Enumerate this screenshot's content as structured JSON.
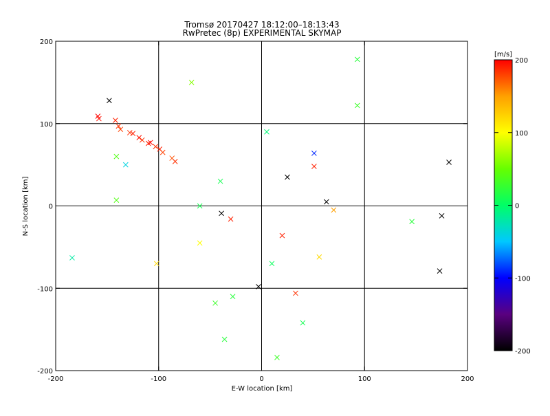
{
  "chart_data": {
    "type": "scatter",
    "title": "Tromsø 20170427 18:12:00–18:13:43",
    "subtitle": "RwPretec (8p) EXPERIMENTAL SKYMAP",
    "xlabel": "E-W location [km]",
    "ylabel": "N-S location [km]",
    "xlim": [
      -200,
      200
    ],
    "ylim": [
      -200,
      200
    ],
    "x_ticks": [
      "-200",
      "-100",
      "0",
      "100",
      "200"
    ],
    "y_ticks": [
      "-200",
      "-100",
      "0",
      "100",
      "200"
    ],
    "gridlines_x": [
      -100,
      0,
      100
    ],
    "gridlines_y": [
      -100,
      0,
      100
    ],
    "grid": true,
    "colorbar": {
      "label": "[m/s]",
      "range": [
        -200,
        200
      ],
      "ticks": [
        "-200",
        "-100",
        "0",
        "100",
        "200"
      ],
      "colormap": [
        "#000000",
        "#5a0080",
        "#0000ff",
        "#00c8ff",
        "#00ff66",
        "#66ff00",
        "#ffff00",
        "#ffa000",
        "#ff0000"
      ]
    },
    "marker_sizes": {
      "large": 7,
      "small": 2.5
    },
    "points": [
      {
        "x": -159,
        "y": 109,
        "v": 200,
        "m": "x"
      },
      {
        "x": -158,
        "y": 106,
        "v": 195,
        "m": "x"
      },
      {
        "x": -142,
        "y": 104,
        "v": 190,
        "m": "x"
      },
      {
        "x": -139,
        "y": 97,
        "v": 185,
        "m": "x"
      },
      {
        "x": -137,
        "y": 93,
        "v": 180,
        "m": "x"
      },
      {
        "x": -128,
        "y": 89,
        "v": 185,
        "m": "x"
      },
      {
        "x": -125,
        "y": 88,
        "v": 190,
        "m": "x"
      },
      {
        "x": -119,
        "y": 83,
        "v": 195,
        "m": "x"
      },
      {
        "x": -116,
        "y": 80,
        "v": 185,
        "m": "x"
      },
      {
        "x": -110,
        "y": 76,
        "v": 190,
        "m": "x"
      },
      {
        "x": -108,
        "y": 77,
        "v": 200,
        "m": "x"
      },
      {
        "x": -103,
        "y": 72,
        "v": 185,
        "m": "x"
      },
      {
        "x": -99,
        "y": 69,
        "v": 190,
        "m": "x"
      },
      {
        "x": -96,
        "y": 65,
        "v": 180,
        "m": "x"
      },
      {
        "x": -87,
        "y": 58,
        "v": 175,
        "m": "x"
      },
      {
        "x": -84,
        "y": 54,
        "v": 185,
        "m": "x"
      },
      {
        "x": -148,
        "y": 128,
        "v": -200,
        "m": "x"
      },
      {
        "x": -132,
        "y": 50,
        "v": -40,
        "m": "x"
      },
      {
        "x": -141,
        "y": 60,
        "v": 40,
        "m": "x"
      },
      {
        "x": -141,
        "y": 7,
        "v": 40,
        "m": "x"
      },
      {
        "x": -68,
        "y": 150,
        "v": 60,
        "m": "x"
      },
      {
        "x": 93,
        "y": 178,
        "v": 20,
        "m": "x"
      },
      {
        "x": 93,
        "y": 122,
        "v": 30,
        "m": "x"
      },
      {
        "x": 182,
        "y": 53,
        "v": -200,
        "m": "x"
      },
      {
        "x": 175,
        "y": -12,
        "v": -200,
        "m": "x"
      },
      {
        "x": 173,
        "y": -79,
        "v": -200,
        "m": "x"
      },
      {
        "x": 146,
        "y": -19,
        "v": 20,
        "m": "x"
      },
      {
        "x": 51,
        "y": 64,
        "v": -90,
        "m": "x"
      },
      {
        "x": 51,
        "y": 48,
        "v": 190,
        "m": "x"
      },
      {
        "x": 25,
        "y": 35,
        "v": -200,
        "m": "x"
      },
      {
        "x": 63,
        "y": 5,
        "v": -200,
        "m": "x"
      },
      {
        "x": 20,
        "y": -36,
        "v": 190,
        "m": "x"
      },
      {
        "x": 33,
        "y": -106,
        "v": 185,
        "m": "x"
      },
      {
        "x": -3,
        "y": -98,
        "v": -200,
        "m": "x"
      },
      {
        "x": -39,
        "y": -9,
        "v": -200,
        "m": "x"
      },
      {
        "x": -30,
        "y": -16,
        "v": 190,
        "m": "x"
      },
      {
        "x": -184,
        "y": -63,
        "v": -20,
        "m": "x"
      },
      {
        "x": -36,
        "y": -162,
        "v": 20,
        "m": "x"
      },
      {
        "x": 15,
        "y": -184,
        "v": 30,
        "m": "x"
      },
      {
        "x": 40,
        "y": -142,
        "v": 10,
        "m": "x"
      },
      {
        "x": 56,
        "y": -62,
        "v": 120,
        "m": "x"
      },
      {
        "x": 70,
        "y": -5,
        "v": 150,
        "m": "x"
      },
      {
        "x": -102,
        "y": -70,
        "v": 120,
        "m": "x"
      },
      {
        "x": -60,
        "y": -45,
        "v": 100,
        "m": "x"
      },
      {
        "x": -45,
        "y": -118,
        "v": 30,
        "m": "x"
      },
      {
        "x": -28,
        "y": -110,
        "v": 20,
        "m": "x"
      },
      {
        "x": 5,
        "y": 90,
        "v": -5,
        "m": "x"
      },
      {
        "x": -40,
        "y": 30,
        "v": 10,
        "m": "x"
      },
      {
        "x": -60,
        "y": 0,
        "v": 10,
        "m": "x"
      },
      {
        "x": 10,
        "y": -70,
        "v": 5,
        "m": "x"
      }
    ]
  }
}
